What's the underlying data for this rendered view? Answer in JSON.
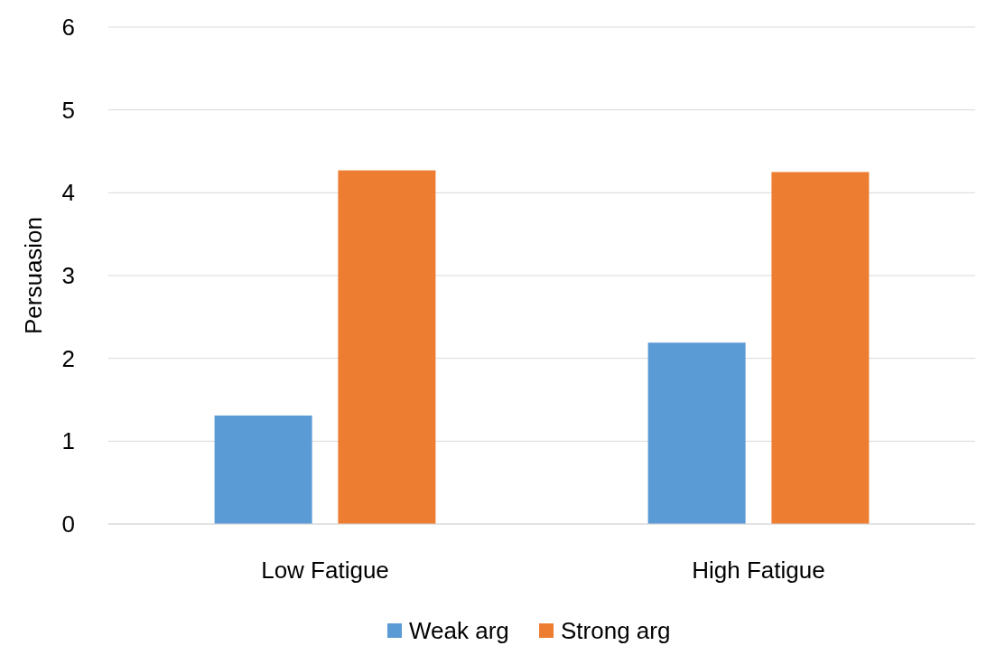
{
  "chart_data": {
    "type": "bar",
    "ylabel": "Persuasion",
    "categories": [
      "Low Fatigue",
      "High Fatigue"
    ],
    "series": [
      {
        "name": "Weak arg",
        "color": "#5b9bd5",
        "values": [
          1.31,
          2.19
        ]
      },
      {
        "name": "Strong arg",
        "color": "#ed7d31",
        "values": [
          4.27,
          4.25
        ]
      }
    ],
    "ylim": [
      0,
      6
    ],
    "yticks": [
      0,
      1,
      2,
      3,
      4,
      5,
      6
    ],
    "grid": "y",
    "legend": "bottom"
  }
}
